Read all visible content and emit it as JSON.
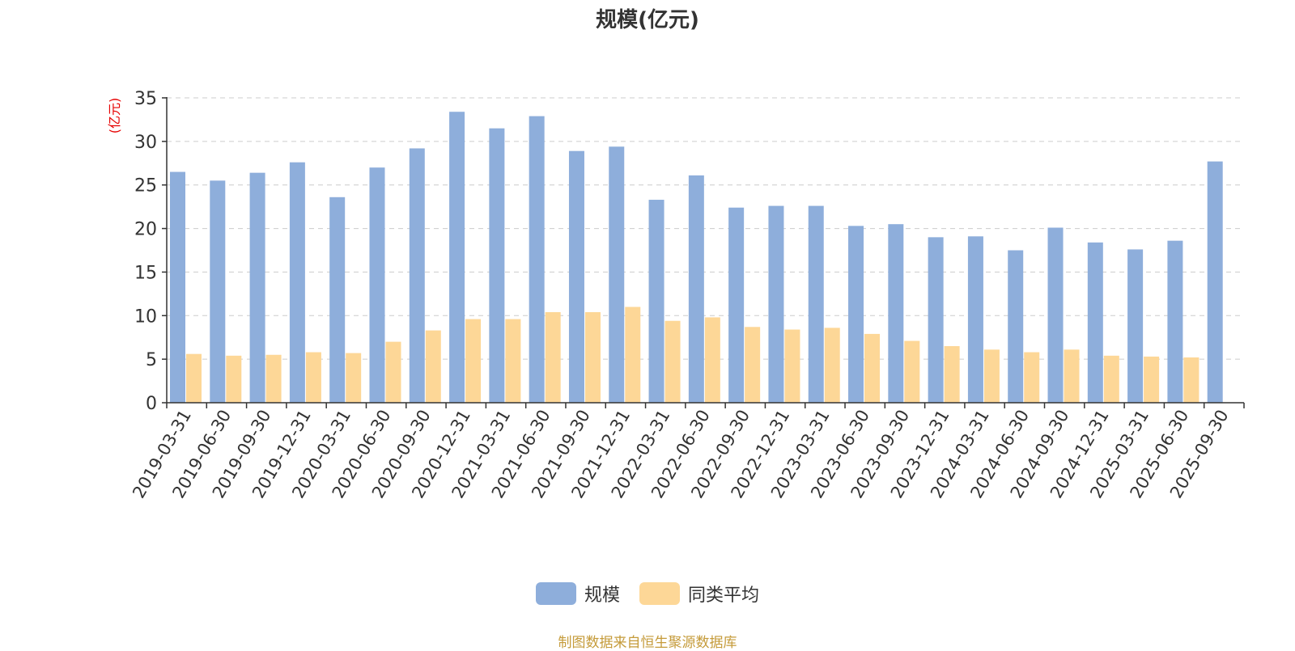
{
  "chart_data": {
    "type": "bar",
    "title": "规模(亿元)",
    "ylabel": "(亿元)",
    "ylim": [
      0,
      35
    ],
    "yticks": [
      0,
      5,
      10,
      15,
      20,
      25,
      30,
      35
    ],
    "grid": true,
    "legend_position": "bottom-center",
    "categories": [
      "2019-03-31",
      "2019-06-30",
      "2019-09-30",
      "2019-12-31",
      "2020-03-31",
      "2020-06-30",
      "2020-09-30",
      "2020-12-31",
      "2021-03-31",
      "2021-06-30",
      "2021-09-30",
      "2021-12-31",
      "2022-03-31",
      "2022-06-30",
      "2022-09-30",
      "2022-12-31",
      "2023-03-31",
      "2023-06-30",
      "2023-09-30",
      "2023-12-31",
      "2024-03-31",
      "2024-06-30",
      "2024-09-30",
      "2024-12-31",
      "2025-03-31",
      "2025-06-30",
      "2025-09-30"
    ],
    "series": [
      {
        "name": "规模",
        "color": "#8eaedb",
        "values": [
          26.5,
          25.5,
          26.4,
          27.6,
          23.6,
          27.0,
          29.2,
          33.4,
          31.5,
          32.9,
          28.9,
          29.4,
          23.3,
          26.1,
          22.4,
          22.6,
          22.6,
          20.3,
          20.5,
          19.0,
          19.1,
          17.5,
          20.1,
          18.4,
          17.6,
          18.6,
          27.7
        ]
      },
      {
        "name": "同类平均",
        "color": "#fdd797",
        "values": [
          5.6,
          5.4,
          5.5,
          5.8,
          5.7,
          7.0,
          8.3,
          9.6,
          9.6,
          10.4,
          10.4,
          11.0,
          9.4,
          9.8,
          8.7,
          8.4,
          8.6,
          7.9,
          7.1,
          6.5,
          6.1,
          5.8,
          6.1,
          5.4,
          5.3,
          5.2,
          null
        ]
      }
    ]
  },
  "source_note": "制图数据来自恒生聚源数据库",
  "colors": {
    "axis": "#333333",
    "grid": "#cccccc",
    "ylabel": "#e60000"
  }
}
